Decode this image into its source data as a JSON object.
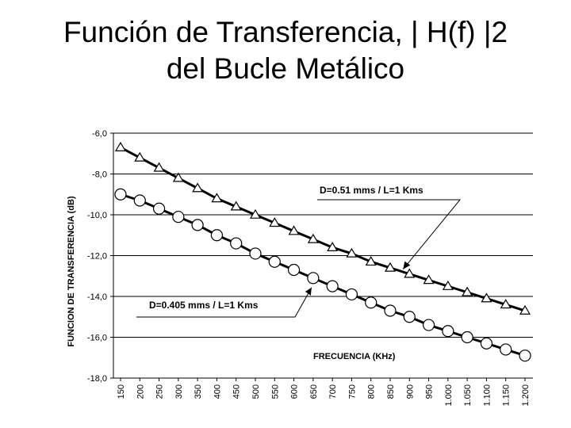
{
  "slide": {
    "title_line1": "Función de Transferencia, | H(f) |2",
    "title_line2": "del Bucle Metálico"
  },
  "chart_data": {
    "type": "line",
    "ylabel": "FUNCION DE TRANSFERENCIA (dB)",
    "xlabel": "FRECUENCIA (KHz)",
    "ylim": [
      -18,
      -6
    ],
    "y_ticks": [
      "-6,0",
      "-8,0",
      "-10,0",
      "-12,0",
      "-14,0",
      "-16,0",
      "-18,0"
    ],
    "y_tick_values": [
      -6,
      -8,
      -10,
      -12,
      -14,
      -16,
      -18
    ],
    "x_ticks": [
      "150",
      "200",
      "250",
      "300",
      "350",
      "400",
      "450",
      "500",
      "550",
      "600",
      "650",
      "700",
      "750",
      "800",
      "850",
      "900",
      "950",
      "1.000",
      "1.050",
      "1.100",
      "1.150",
      "1.200"
    ],
    "x": [
      150,
      200,
      250,
      300,
      350,
      400,
      450,
      500,
      550,
      600,
      650,
      700,
      750,
      800,
      850,
      900,
      950,
      1000,
      1050,
      1100,
      1150,
      1200
    ],
    "grid": "horizontal",
    "series": [
      {
        "name": "D=0.51 mms / L=1 Kms",
        "marker": "triangle",
        "values": [
          -6.7,
          -7.2,
          -7.7,
          -8.2,
          -8.7,
          -9.2,
          -9.6,
          -10.0,
          -10.4,
          -10.8,
          -11.2,
          -11.6,
          -11.9,
          -12.3,
          -12.6,
          -12.9,
          -13.2,
          -13.5,
          -13.8,
          -14.1,
          -14.4,
          -14.7
        ]
      },
      {
        "name": "D=0.405 mms / L=1 Kms",
        "marker": "circle",
        "values": [
          -9.0,
          -9.3,
          -9.7,
          -10.1,
          -10.5,
          -11.0,
          -11.4,
          -11.9,
          -12.3,
          -12.7,
          -13.1,
          -13.5,
          -13.9,
          -14.3,
          -14.7,
          -15.0,
          -15.4,
          -15.7,
          -16.0,
          -16.3,
          -16.6,
          -16.9
        ]
      }
    ],
    "annotations": [
      {
        "text": "D=0.51 mms / L=1 Kms",
        "series": 0
      },
      {
        "text": "D=0.405 mms / L=1 Kms",
        "series": 1
      }
    ],
    "colors": {
      "line": "#000000",
      "marker_fill": "#ffffff",
      "grid": "#000000"
    }
  }
}
